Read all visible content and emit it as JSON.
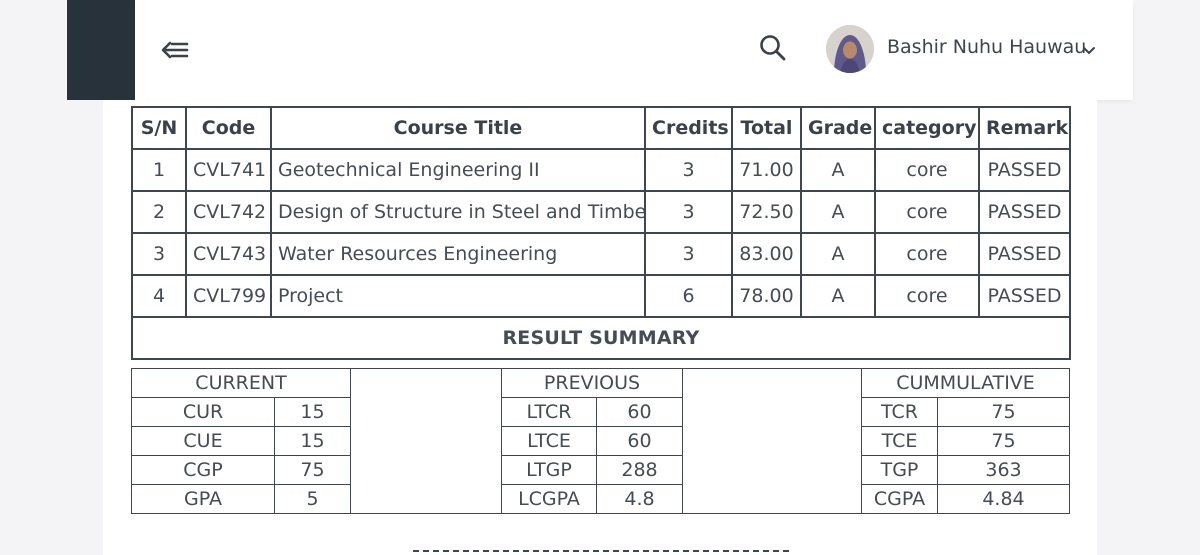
{
  "header": {
    "user_name": "Bashir Nuhu Hauwau",
    "icons": {
      "menu": "menu-collapse-icon",
      "search": "search-icon",
      "caret": "chevron-down-icon"
    }
  },
  "courses": {
    "headers": [
      "S/N",
      "Code",
      "Course Title",
      "Credits",
      "Total",
      "Grade",
      "category",
      "Remark"
    ],
    "rows": [
      [
        "1",
        "CVL741",
        "Geotechnical Engineering II",
        "3",
        "71.00",
        "A",
        "core",
        "PASSED"
      ],
      [
        "2",
        "CVL742",
        "Design of Structure in Steel and Timber",
        "3",
        "72.50",
        "A",
        "core",
        "PASSED"
      ],
      [
        "3",
        "CVL743",
        "Water Resources Engineering",
        "3",
        "83.00",
        "A",
        "core",
        "PASSED"
      ],
      [
        "4",
        "CVL799",
        "Project",
        "6",
        "78.00",
        "A",
        "core",
        "PASSED"
      ]
    ]
  },
  "summary": {
    "title": "RESULT SUMMARY",
    "current": {
      "label": "CURRENT",
      "rows": [
        [
          "CUR",
          "15"
        ],
        [
          "CUE",
          "15"
        ],
        [
          "CGP",
          "75"
        ],
        [
          "GPA",
          "5"
        ]
      ]
    },
    "previous": {
      "label": "PREVIOUS",
      "rows": [
        [
          "LTCR",
          "60"
        ],
        [
          "LTCE",
          "60"
        ],
        [
          "LTGP",
          "288"
        ],
        [
          "LCGPA",
          "4.8"
        ]
      ]
    },
    "cumulative": {
      "label": "CUMMULATIVE",
      "rows": [
        [
          "TCR",
          "75"
        ],
        [
          "TCE",
          "75"
        ],
        [
          "TGP",
          "363"
        ],
        [
          "CGPA",
          "4.84"
        ]
      ]
    }
  },
  "colors": {
    "sidebar": "#27323b",
    "border": "#3e4651",
    "text": "#454c55",
    "background": "#f4f4f6"
  }
}
